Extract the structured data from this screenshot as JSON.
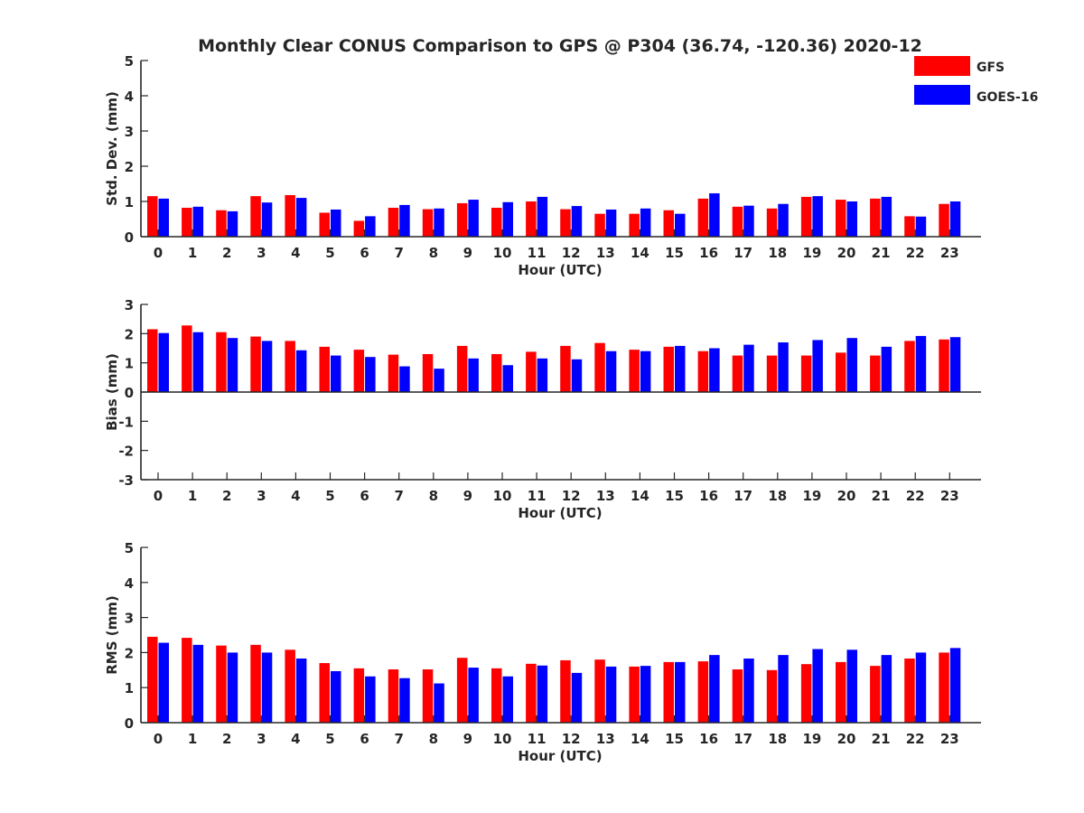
{
  "figure_title": "Monthly Clear CONUS Comparison to GPS @ P304 (36.74, -120.36) 2020-12",
  "colors": {
    "GFS": "#ff0000",
    "GOES-16": "#0000ff",
    "axis": "#262626"
  },
  "legend": [
    "GFS",
    "GOES-16"
  ],
  "chart_data": [
    {
      "type": "bar",
      "title": "Monthly Clear CONUS Comparison to GPS @ P304 (36.74, -120.36) 2020-12",
      "xlabel": "Hour (UTC)",
      "ylabel": "Std. Dev. (mm)",
      "ylim": [
        0,
        5
      ],
      "yticks": [
        0,
        1,
        2,
        3,
        4,
        5
      ],
      "legend_position": "top-right",
      "categories": [
        "0",
        "1",
        "2",
        "3",
        "4",
        "5",
        "6",
        "7",
        "8",
        "9",
        "10",
        "11",
        "12",
        "13",
        "14",
        "15",
        "16",
        "17",
        "18",
        "19",
        "20",
        "21",
        "22",
        "23"
      ],
      "series": [
        {
          "name": "GFS",
          "values": [
            1.15,
            0.82,
            0.75,
            1.15,
            1.18,
            0.68,
            0.45,
            0.82,
            0.78,
            0.95,
            0.82,
            1.0,
            0.78,
            0.65,
            0.65,
            0.75,
            1.08,
            0.85,
            0.8,
            1.13,
            1.05,
            1.08,
            0.58,
            0.93
          ]
        },
        {
          "name": "GOES-16",
          "values": [
            1.08,
            0.85,
            0.72,
            0.97,
            1.1,
            0.77,
            0.58,
            0.9,
            0.8,
            1.05,
            0.98,
            1.13,
            0.87,
            0.77,
            0.8,
            0.65,
            1.23,
            0.88,
            0.93,
            1.15,
            1.0,
            1.13,
            0.57,
            1.0
          ]
        }
      ]
    },
    {
      "type": "bar",
      "title": "",
      "xlabel": "Hour (UTC)",
      "ylabel": "Bias (mm)",
      "ylim": [
        -3,
        3
      ],
      "yticks": [
        -3,
        -2,
        -1,
        0,
        1,
        2,
        3
      ],
      "categories": [
        "0",
        "1",
        "2",
        "3",
        "4",
        "5",
        "6",
        "7",
        "8",
        "9",
        "10",
        "11",
        "12",
        "13",
        "14",
        "15",
        "16",
        "17",
        "18",
        "19",
        "20",
        "21",
        "22",
        "23"
      ],
      "series": [
        {
          "name": "GFS",
          "values": [
            2.15,
            2.28,
            2.05,
            1.9,
            1.75,
            1.55,
            1.45,
            1.28,
            1.3,
            1.58,
            1.3,
            1.38,
            1.58,
            1.68,
            1.45,
            1.55,
            1.4,
            1.25,
            1.25,
            1.25,
            1.35,
            1.25,
            1.75,
            1.8
          ]
        },
        {
          "name": "GOES-16",
          "values": [
            2.02,
            2.05,
            1.85,
            1.75,
            1.43,
            1.25,
            1.2,
            0.88,
            0.8,
            1.15,
            0.92,
            1.15,
            1.12,
            1.4,
            1.4,
            1.58,
            1.5,
            1.62,
            1.7,
            1.78,
            1.85,
            1.55,
            1.92,
            1.88
          ]
        }
      ]
    },
    {
      "type": "bar",
      "title": "",
      "xlabel": "Hour (UTC)",
      "ylabel": "RMS (mm)",
      "ylim": [
        0,
        5
      ],
      "yticks": [
        0,
        1,
        2,
        3,
        4,
        5
      ],
      "categories": [
        "0",
        "1",
        "2",
        "3",
        "4",
        "5",
        "6",
        "7",
        "8",
        "9",
        "10",
        "11",
        "12",
        "13",
        "14",
        "15",
        "16",
        "17",
        "18",
        "19",
        "20",
        "21",
        "22",
        "23"
      ],
      "series": [
        {
          "name": "GFS",
          "values": [
            2.45,
            2.42,
            2.2,
            2.22,
            2.08,
            1.7,
            1.55,
            1.52,
            1.52,
            1.85,
            1.55,
            1.68,
            1.78,
            1.8,
            1.6,
            1.73,
            1.75,
            1.52,
            1.5,
            1.67,
            1.73,
            1.62,
            1.83,
            2.0
          ]
        },
        {
          "name": "GOES-16",
          "values": [
            2.28,
            2.22,
            2.0,
            2.0,
            1.83,
            1.47,
            1.32,
            1.27,
            1.12,
            1.57,
            1.32,
            1.63,
            1.42,
            1.6,
            1.62,
            1.73,
            1.93,
            1.83,
            1.93,
            2.1,
            2.08,
            1.93,
            2.0,
            2.13
          ]
        }
      ]
    }
  ]
}
